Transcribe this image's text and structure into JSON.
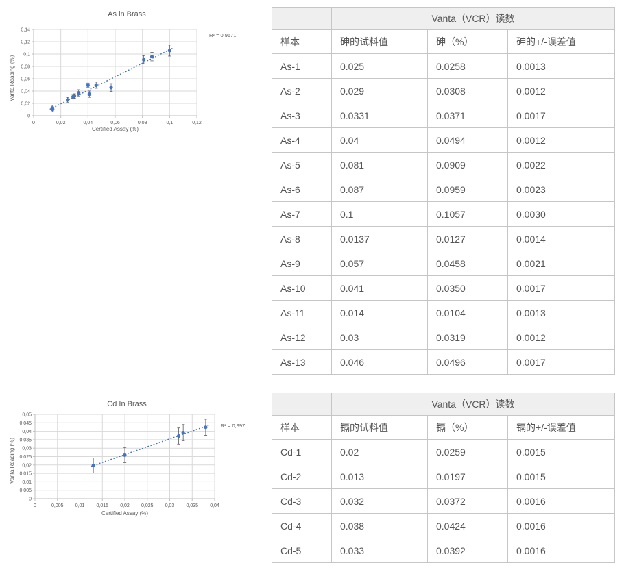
{
  "chart_data": [
    {
      "type": "scatter",
      "title": "As in Brass",
      "xlabel": "Certified Assay (%)",
      "ylabel": "vanta Reading (%)",
      "r2_annotation": "R² = 0,9671",
      "xlim": [
        0,
        0.12
      ],
      "ylim": [
        0,
        0.14
      ],
      "x_ticks": [
        0,
        0.02,
        0.04,
        0.06,
        0.08,
        0.1,
        0.12
      ],
      "x_tick_labels": [
        "0",
        "0,02",
        "0,04",
        "0,06",
        "0,08",
        "0,1",
        "0,12"
      ],
      "y_ticks": [
        0,
        0.02,
        0.04,
        0.06,
        0.08,
        0.1,
        0.12,
        0.14
      ],
      "y_tick_labels": [
        "0",
        "0,02",
        "0,04",
        "0,06",
        "0,08",
        "0,1",
        "0,12",
        "0,14"
      ],
      "grid": true,
      "legend": "none",
      "trendline": "linear-dotted",
      "error_bar_multiplier": 3,
      "marker_color": "#4472C4",
      "grid_color": "#d9d9d9",
      "axis_color": "#bfbfbf",
      "points": [
        {
          "sample": "As-1",
          "x": 0.025,
          "y": 0.0258,
          "err": 0.0013
        },
        {
          "sample": "As-2",
          "x": 0.029,
          "y": 0.0308,
          "err": 0.0012
        },
        {
          "sample": "As-3",
          "x": 0.0331,
          "y": 0.0371,
          "err": 0.0017
        },
        {
          "sample": "As-4",
          "x": 0.04,
          "y": 0.0494,
          "err": 0.0012
        },
        {
          "sample": "As-5",
          "x": 0.081,
          "y": 0.0909,
          "err": 0.0022
        },
        {
          "sample": "As-6",
          "x": 0.087,
          "y": 0.0959,
          "err": 0.0023
        },
        {
          "sample": "As-7",
          "x": 0.1,
          "y": 0.1057,
          "err": 0.003
        },
        {
          "sample": "As-8",
          "x": 0.0137,
          "y": 0.0127,
          "err": 0.0014
        },
        {
          "sample": "As-9",
          "x": 0.057,
          "y": 0.0458,
          "err": 0.0021
        },
        {
          "sample": "As-10",
          "x": 0.041,
          "y": 0.035,
          "err": 0.0017
        },
        {
          "sample": "As-11",
          "x": 0.014,
          "y": 0.0104,
          "err": 0.0013
        },
        {
          "sample": "As-12",
          "x": 0.03,
          "y": 0.0319,
          "err": 0.0012
        },
        {
          "sample": "As-13",
          "x": 0.046,
          "y": 0.0496,
          "err": 0.0017
        }
      ]
    },
    {
      "type": "scatter",
      "title": "Cd In Brass",
      "xlabel": "Certified Assay (%)",
      "ylabel": "Vanta Reading (%)",
      "r2_annotation": "R² = 0,997",
      "xlim": [
        0,
        0.04
      ],
      "ylim": [
        0,
        0.05
      ],
      "x_ticks": [
        0,
        0.005,
        0.01,
        0.015,
        0.02,
        0.025,
        0.03,
        0.035,
        0.04
      ],
      "x_tick_labels": [
        "0",
        "0,005",
        "0,01",
        "0,015",
        "0,02",
        "0,025",
        "0,03",
        "0,035",
        "0,04"
      ],
      "y_ticks": [
        0,
        0.005,
        0.01,
        0.015,
        0.02,
        0.025,
        0.03,
        0.035,
        0.04,
        0.045,
        0.05
      ],
      "y_tick_labels": [
        "0",
        "0,005",
        "0,01",
        "0,015",
        "0,02",
        "0,025",
        "0,03",
        "0,035",
        "0,04",
        "0,045",
        "0,05"
      ],
      "grid": true,
      "legend": "none",
      "trendline": "linear-dotted",
      "error_bar_multiplier": 3,
      "marker_color": "#4472C4",
      "grid_color": "#d9d9d9",
      "axis_color": "#bfbfbf",
      "points": [
        {
          "sample": "Cd-1",
          "x": 0.02,
          "y": 0.0259,
          "err": 0.0015
        },
        {
          "sample": "Cd-2",
          "x": 0.013,
          "y": 0.0197,
          "err": 0.0015
        },
        {
          "sample": "Cd-3",
          "x": 0.032,
          "y": 0.0372,
          "err": 0.0016
        },
        {
          "sample": "Cd-4",
          "x": 0.038,
          "y": 0.0424,
          "err": 0.0016
        },
        {
          "sample": "Cd-5",
          "x": 0.033,
          "y": 0.0392,
          "err": 0.0016
        }
      ]
    }
  ],
  "tables": [
    {
      "group_header": "Vanta（VCR）读数",
      "columns": [
        "样本",
        "砷的试料值",
        "砷（%）",
        "砷的+/-误差值"
      ],
      "rows": [
        [
          "As-1",
          "0.025",
          "0.0258",
          "0.0013"
        ],
        [
          "As-2",
          "0.029",
          "0.0308",
          "0.0012"
        ],
        [
          "As-3",
          "0.0331",
          "0.0371",
          "0.0017"
        ],
        [
          "As-4",
          "0.04",
          "0.0494",
          "0.0012"
        ],
        [
          "As-5",
          "0.081",
          "0.0909",
          "0.0022"
        ],
        [
          "As-6",
          "0.087",
          "0.0959",
          "0.0023"
        ],
        [
          "As-7",
          "0.1",
          "0.1057",
          "0.0030"
        ],
        [
          "As-8",
          "0.0137",
          "0.0127",
          "0.0014"
        ],
        [
          "As-9",
          "0.057",
          "0.0458",
          "0.0021"
        ],
        [
          "As-10",
          "0.041",
          "0.0350",
          "0.0017"
        ],
        [
          "As-11",
          "0.014",
          "0.0104",
          "0.0013"
        ],
        [
          "As-12",
          "0.03",
          "0.0319",
          "0.0012"
        ],
        [
          "As-13",
          "0.046",
          "0.0496",
          "0.0017"
        ]
      ]
    },
    {
      "group_header": "Vanta（VCR）读数",
      "columns": [
        "样本",
        "镉的试料值",
        "镉（%）",
        "镉的+/-误差值"
      ],
      "rows": [
        [
          "Cd-1",
          "0.02",
          "0.0259",
          "0.0015"
        ],
        [
          "Cd-2",
          "0.013",
          "0.0197",
          "0.0015"
        ],
        [
          "Cd-3",
          "0.032",
          "0.0372",
          "0.0016"
        ],
        [
          "Cd-4",
          "0.038",
          "0.0424",
          "0.0016"
        ],
        [
          "Cd-5",
          "0.033",
          "0.0392",
          "0.0016"
        ]
      ]
    }
  ]
}
